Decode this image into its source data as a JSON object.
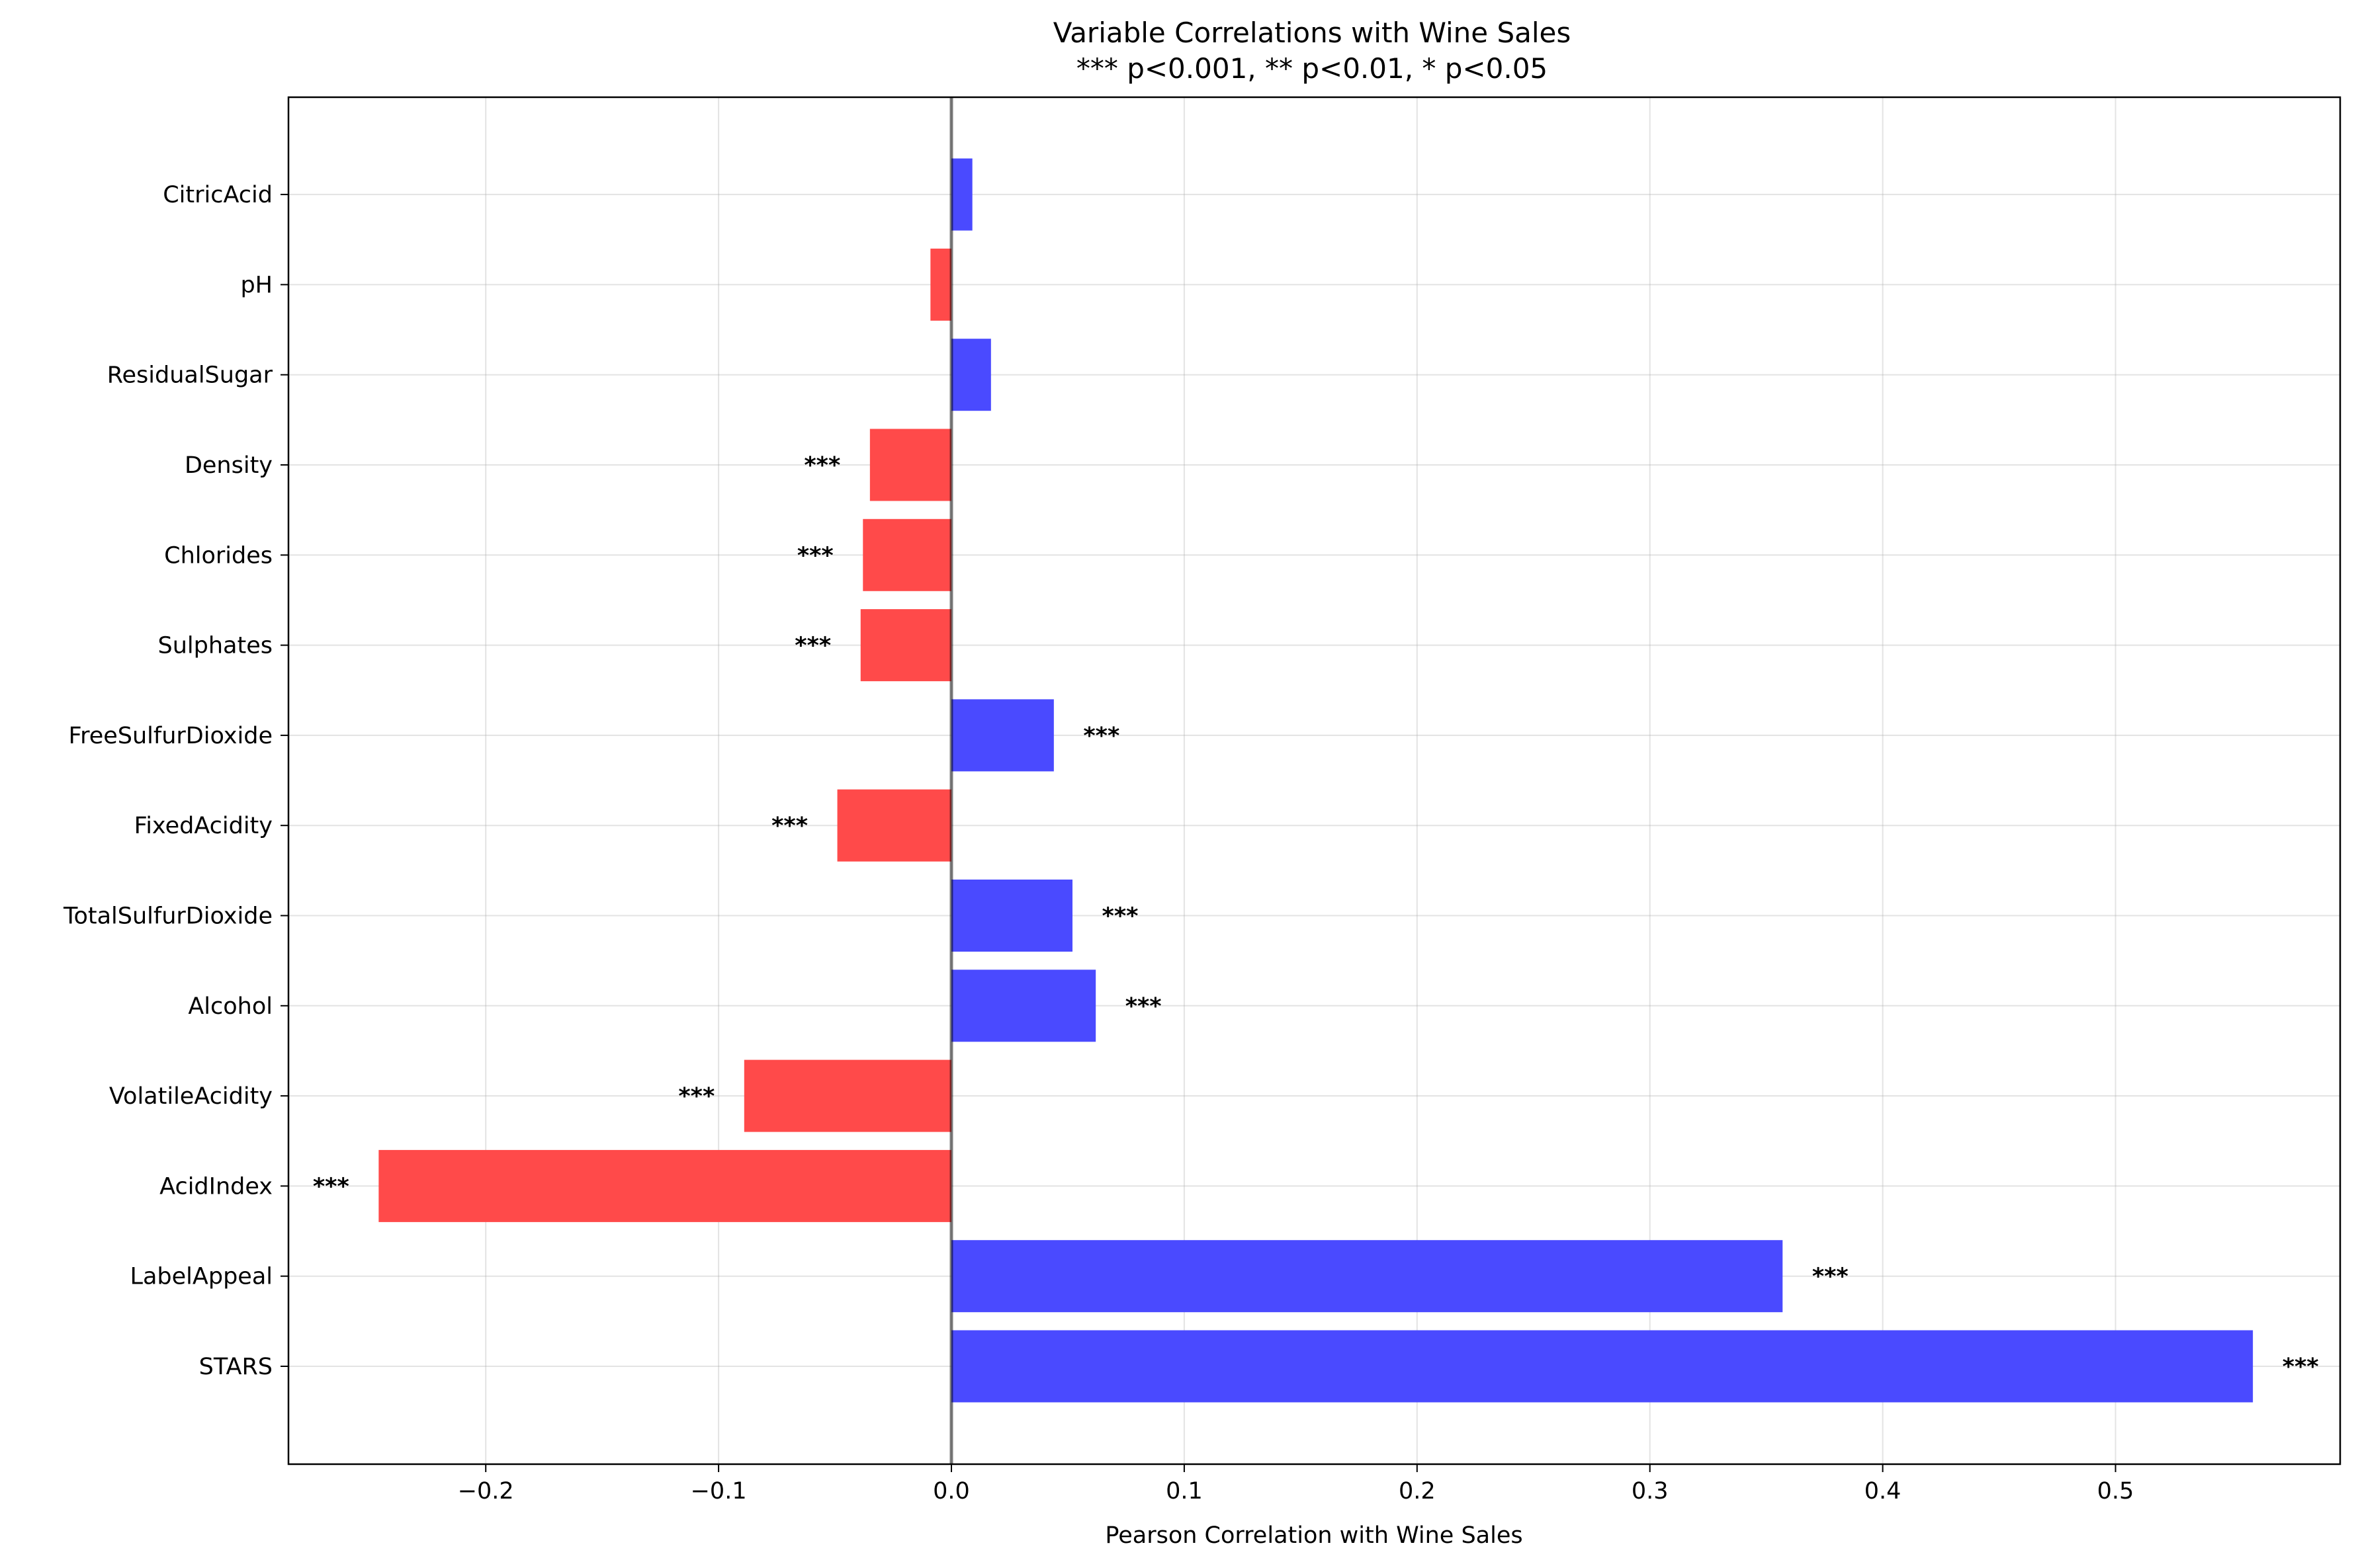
{
  "chart_data": {
    "type": "bar",
    "orientation": "horizontal",
    "title": "Variable Correlations with Wine Sales",
    "subtitle": "*** p<0.001, ** p<0.01, * p<0.05",
    "xlabel": "Pearson Correlation with Wine Sales",
    "ylabel": "",
    "xlim": [
      -0.285,
      0.5875
    ],
    "xticks": [
      -0.2,
      -0.1,
      0.0,
      0.1,
      0.2,
      0.3,
      0.4,
      0.5
    ],
    "xtick_labels": [
      "−0.2",
      "−0.1",
      "0.0",
      "0.1",
      "0.2",
      "0.3",
      "0.4",
      "0.5"
    ],
    "grid": true,
    "positive_color": "#4a4aff",
    "negative_color": "#ff4a4a",
    "categories": [
      "STARS",
      "LabelAppeal",
      "AcidIndex",
      "VolatileAcidity",
      "Alcohol",
      "TotalSulfurDioxide",
      "FixedAcidity",
      "FreeSulfurDioxide",
      "Sulphates",
      "Chlorides",
      "Density",
      "ResidualSugar",
      "pH",
      "CitricAcid"
    ],
    "values": [
      0.559,
      0.357,
      -0.246,
      -0.089,
      0.062,
      0.052,
      -0.049,
      0.044,
      -0.039,
      -0.038,
      -0.035,
      0.017,
      -0.009,
      0.009
    ],
    "significance": [
      "***",
      "***",
      "***",
      "***",
      "***",
      "***",
      "***",
      "***",
      "***",
      "***",
      "***",
      "",
      "",
      ""
    ]
  }
}
